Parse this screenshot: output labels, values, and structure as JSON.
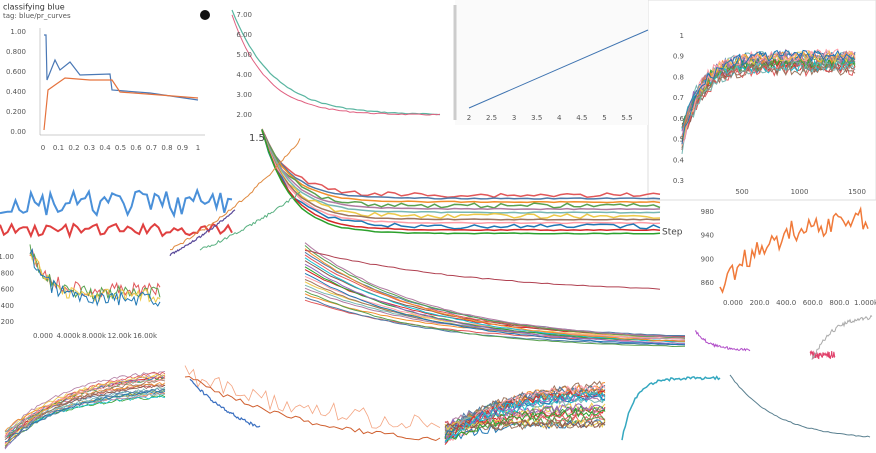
{
  "panels": [
    {
      "title": "classifying blue",
      "subtitle": "tag: blue/pr_curves",
      "yticks": [
        "1.00",
        "0.800",
        "0.600",
        "0.400",
        "0.200",
        "0.00"
      ],
      "xticks": [
        "0",
        "0.1",
        "0.2",
        "0.3",
        "0.4",
        "0.5",
        "0.6",
        "0.7",
        "0.8",
        "0.9",
        "1"
      ]
    },
    {
      "yticks": [
        "7.00",
        "6.00",
        "5.00",
        "4.00",
        "3.00",
        "2.00"
      ]
    },
    {
      "xticks": [
        "2",
        "2.5",
        "3",
        "3.5",
        "4",
        "4.5",
        "5",
        "5.5"
      ]
    },
    {
      "yticks": [
        "1",
        "0.9",
        "0.8",
        "0.7",
        "0.6",
        "0.5",
        "0.4",
        "0.3"
      ],
      "xticks": [
        "500",
        "1000",
        "1500"
      ]
    },
    {
      "labels": [
        "1.5",
        "Step"
      ]
    },
    {
      "yticks": [
        "980",
        "940",
        "900",
        "860"
      ],
      "xticks": [
        "0.000",
        "200.0",
        "400.0",
        "600.0",
        "800.0",
        "1.000k"
      ]
    },
    {
      "yticks": [
        "1.00",
        "800",
        "600",
        "400",
        "200"
      ],
      "xticks": [
        "0.000",
        "4.000k",
        "8.000k",
        "12.00k",
        "16.00k"
      ]
    }
  ]
}
